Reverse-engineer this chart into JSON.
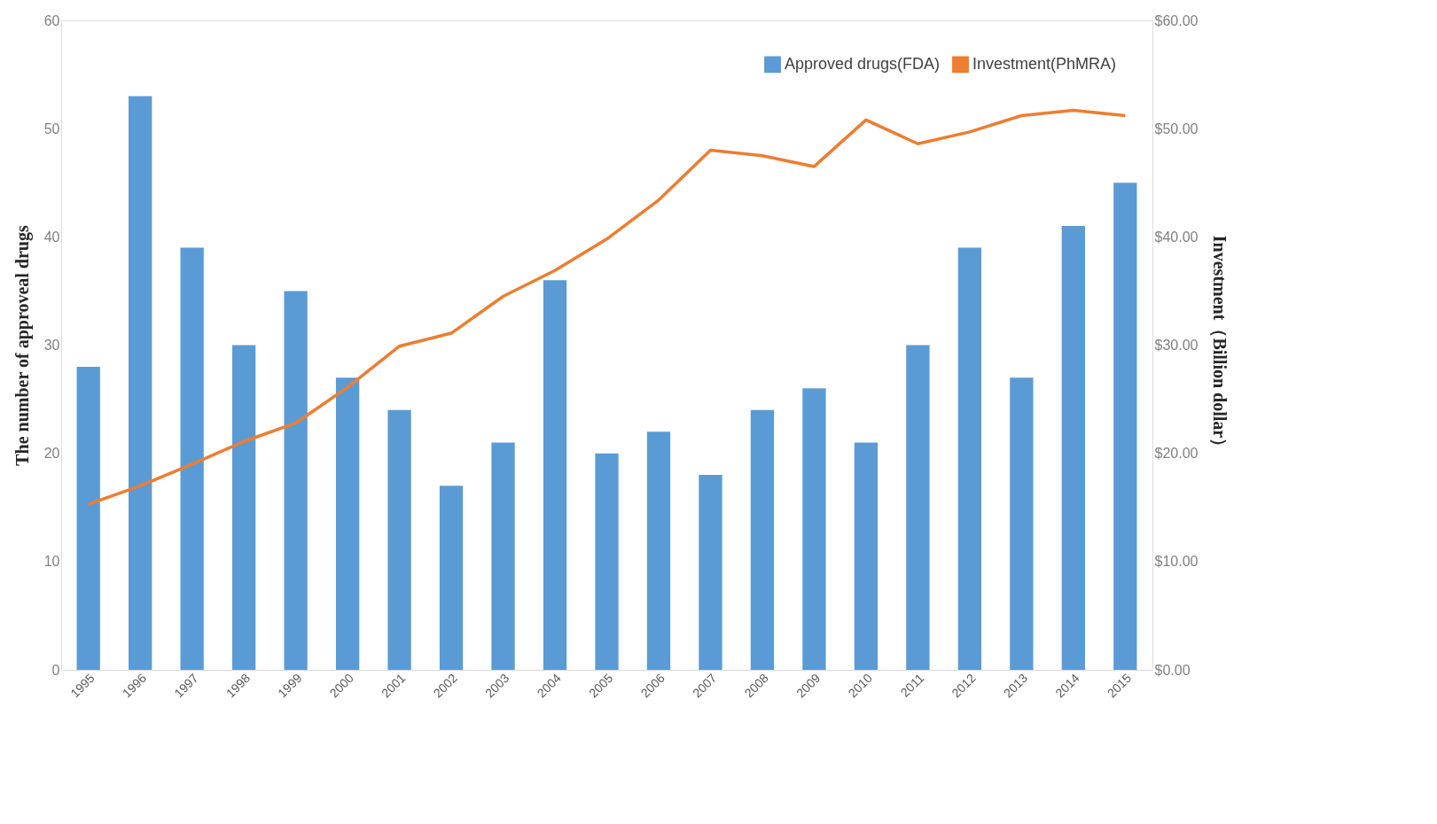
{
  "chart_data": {
    "type": "bar",
    "ylabel": "The number of approveal drugs",
    "y2label": "Investment（Billion dollar）",
    "categories": [
      "1995",
      "1996",
      "1997",
      "1998",
      "1999",
      "2000",
      "2001",
      "2002",
      "2003",
      "2004",
      "2005",
      "2006",
      "2007",
      "2008",
      "2009",
      "2010",
      "2011",
      "2012",
      "2013",
      "2014",
      "2015"
    ],
    "series": [
      {
        "name": "Approved drugs(FDA)",
        "color": "#5b9bd5",
        "values": [
          28,
          53,
          39,
          30,
          35,
          27,
          24,
          17,
          21,
          36,
          20,
          22,
          18,
          24,
          26,
          21,
          30,
          39,
          27,
          41,
          45
        ]
      },
      {
        "name": "Investment(PhMRA)",
        "type": "line",
        "axis": "y2",
        "color": "#ed7d31",
        "values": [
          15.3,
          17.0,
          19.0,
          21.1,
          22.8,
          26.1,
          29.9,
          31.1,
          34.5,
          36.9,
          39.8,
          43.4,
          48.0,
          47.5,
          46.5,
          50.8,
          48.6,
          49.7,
          51.2,
          51.7,
          51.2
        ]
      }
    ],
    "ylim": [
      0,
      60
    ],
    "yticks": [
      0,
      10,
      20,
      30,
      40,
      50,
      60
    ],
    "y2lim": [
      0,
      60
    ],
    "y2ticks": [
      {
        "value": 0,
        "label": "$0.00"
      },
      {
        "value": 10,
        "label": "$10.00"
      },
      {
        "value": 20,
        "label": "$20.00"
      },
      {
        "value": 30,
        "label": "$30.00"
      },
      {
        "value": 40,
        "label": "$40.00"
      },
      {
        "value": 50,
        "label": "$50.00"
      },
      {
        "value": 60,
        "label": "$60.00"
      }
    ],
    "grid": false,
    "legend": "top right"
  }
}
